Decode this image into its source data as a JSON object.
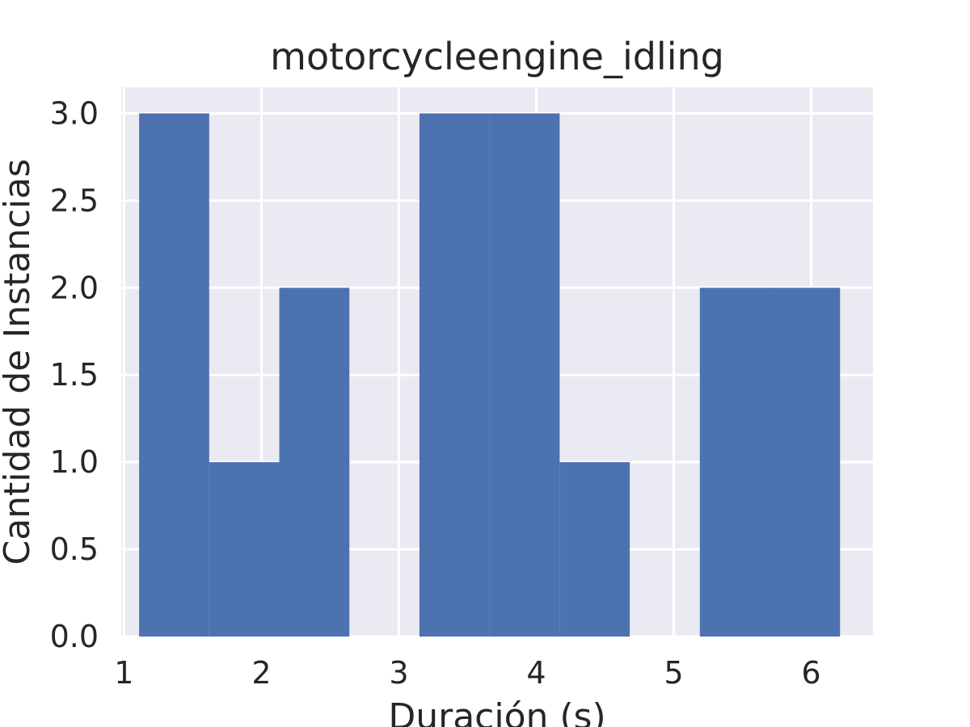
{
  "chart_data": {
    "type": "bar",
    "title": "motorcycleengine_idling",
    "xlabel": "Duración (s)",
    "ylabel": "Cantidad de Instancias",
    "bins": [
      {
        "x0": 1.11,
        "x1": 1.62,
        "count": 3
      },
      {
        "x0": 1.62,
        "x1": 2.13,
        "count": 1
      },
      {
        "x0": 2.13,
        "x1": 2.64,
        "count": 2
      },
      {
        "x0": 2.64,
        "x1": 3.15,
        "count": 0
      },
      {
        "x0": 3.15,
        "x1": 3.66,
        "count": 3
      },
      {
        "x0": 3.66,
        "x1": 4.17,
        "count": 3
      },
      {
        "x0": 4.17,
        "x1": 4.68,
        "count": 1
      },
      {
        "x0": 4.68,
        "x1": 5.19,
        "count": 0
      },
      {
        "x0": 5.19,
        "x1": 5.7,
        "count": 2
      },
      {
        "x0": 5.7,
        "x1": 6.21,
        "count": 2
      }
    ],
    "xlim": [
      0.98,
      6.45
    ],
    "ylim": [
      0,
      3.15
    ],
    "xticks": [
      "1",
      "2",
      "3",
      "4",
      "5",
      "6"
    ],
    "yticks": [
      "0.0",
      "0.5",
      "1.0",
      "1.5",
      "2.0",
      "2.5",
      "3.0"
    ],
    "grid": true,
    "colors": {
      "bar": "#4c72b0",
      "background": "#eaeaf2",
      "grid": "#ffffff"
    }
  }
}
